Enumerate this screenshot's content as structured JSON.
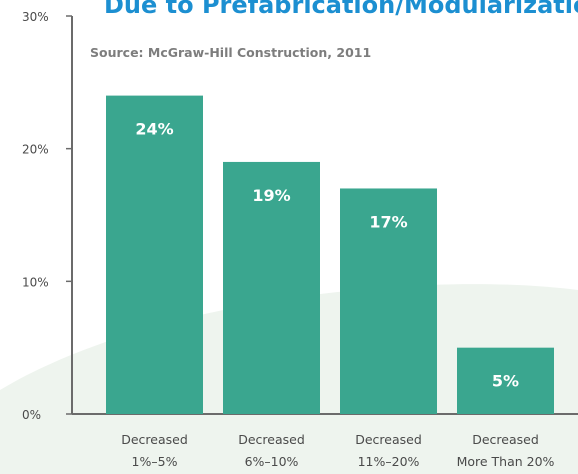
{
  "colors": {
    "bar": "#3aa68f",
    "title": "#1c8fd1",
    "text": "#4a4a4a",
    "source": "#7d7d7d",
    "axis": "#6b6b6b",
    "bar_label": "#ffffff",
    "background_shape": "#eef4ee"
  },
  "chart_data": {
    "type": "bar",
    "title": "Due to Prefabrication/Modularization",
    "subtitle": "Source: McGraw-Hill Construction, 2011",
    "categories": [
      [
        "Decreased",
        "1%–5%"
      ],
      [
        "Decreased",
        "6%–10%"
      ],
      [
        "Decreased",
        "11%–20%"
      ],
      [
        "Decreased",
        "More Than 20%"
      ]
    ],
    "values": [
      24,
      19,
      17,
      5
    ],
    "data_labels": [
      "24%",
      "19%",
      "17%",
      "5%"
    ],
    "ylim": [
      0,
      30
    ],
    "yticks": [
      0,
      10,
      20,
      30
    ],
    "ytick_labels": [
      "0%",
      "10%",
      "20%",
      "30%"
    ],
    "grid": false,
    "legend": "none"
  }
}
